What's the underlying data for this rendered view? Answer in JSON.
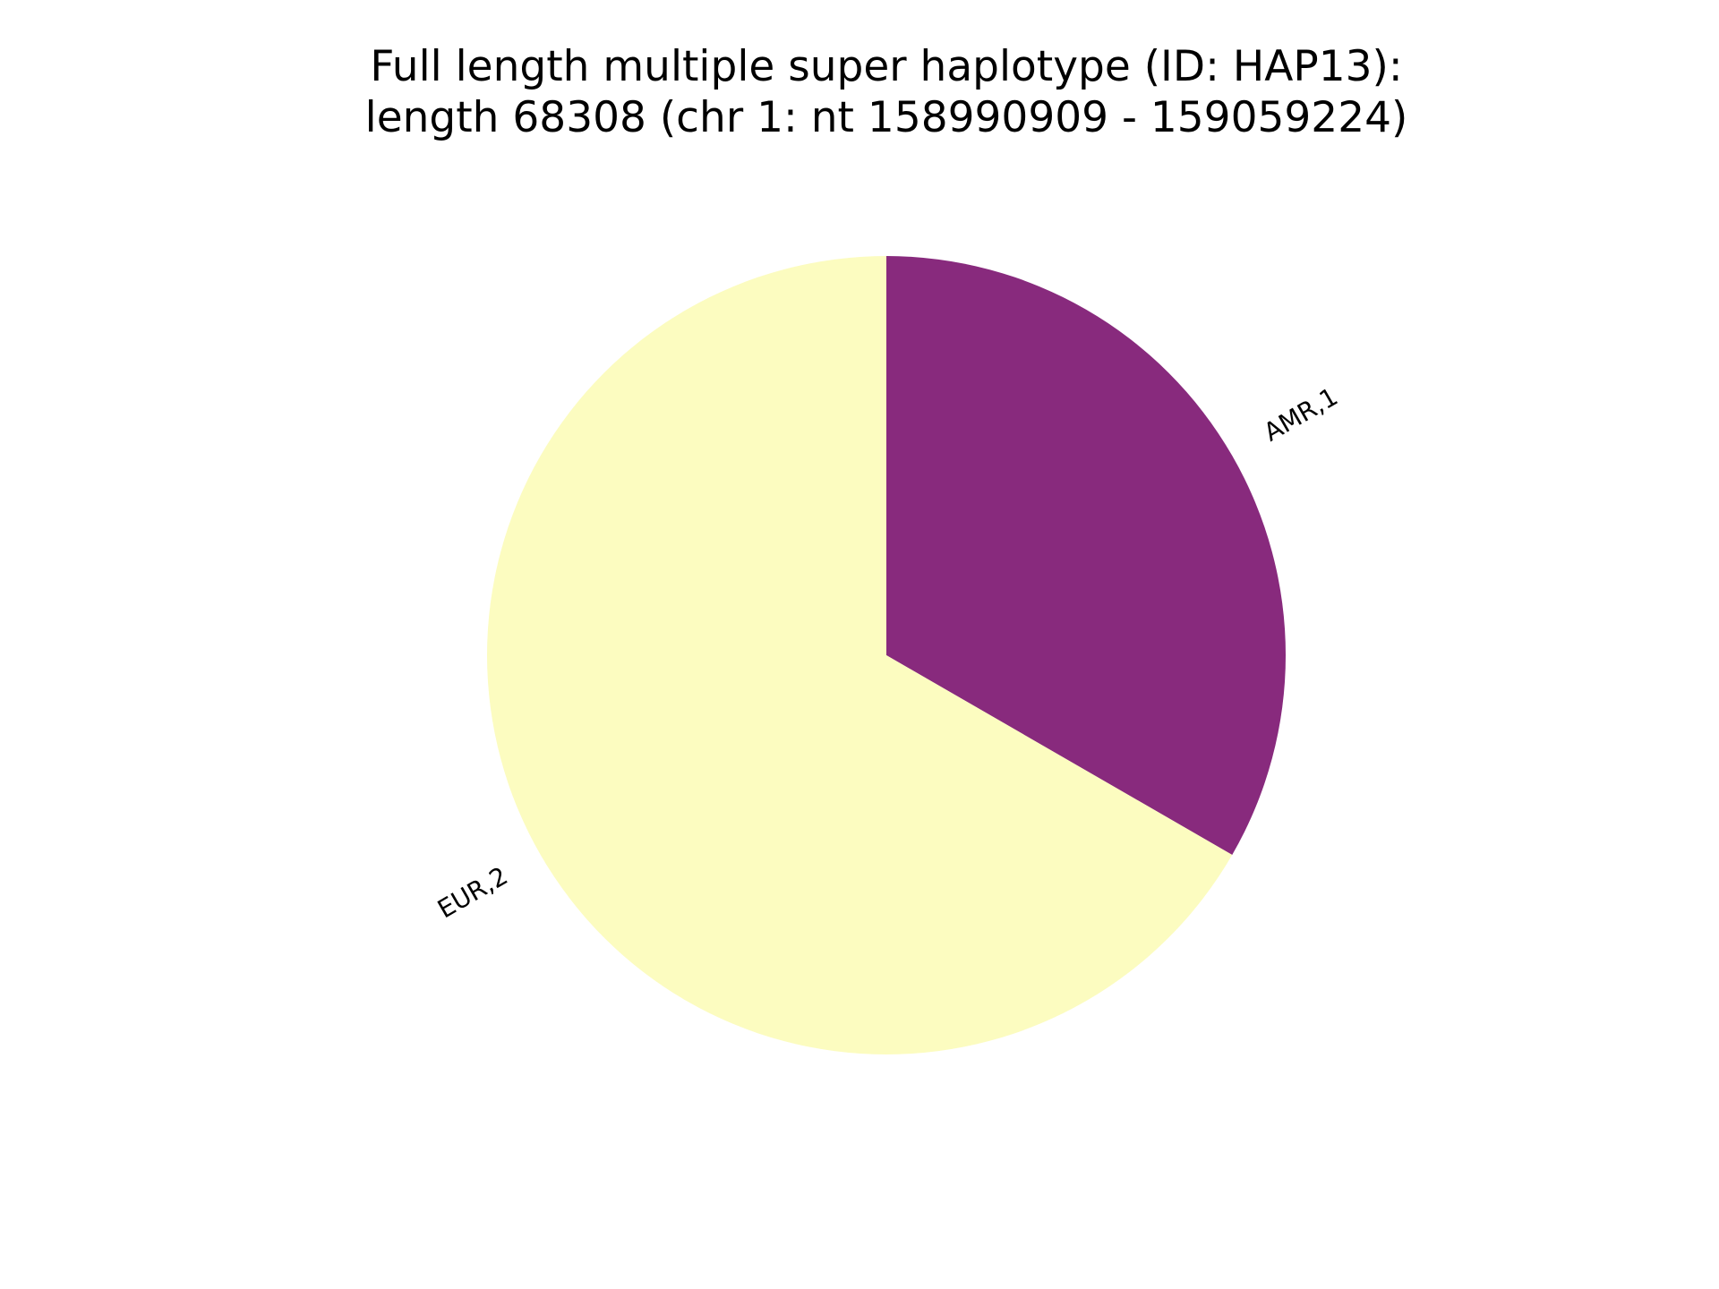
{
  "chart_data": {
    "type": "pie",
    "title_line1": "Full length multiple super haplotype (ID: HAP13):",
    "title_line2": "length 68308 (chr 1: nt 158990909 - 159059224)",
    "slices": [
      {
        "label": "AMR,1",
        "value": 1,
        "color": "#882a7d"
      },
      {
        "label": "EUR,2",
        "value": 2,
        "color": "#fcfcc0"
      }
    ],
    "start_angle_deg": 90,
    "direction": "clockwise",
    "legend": "none"
  }
}
